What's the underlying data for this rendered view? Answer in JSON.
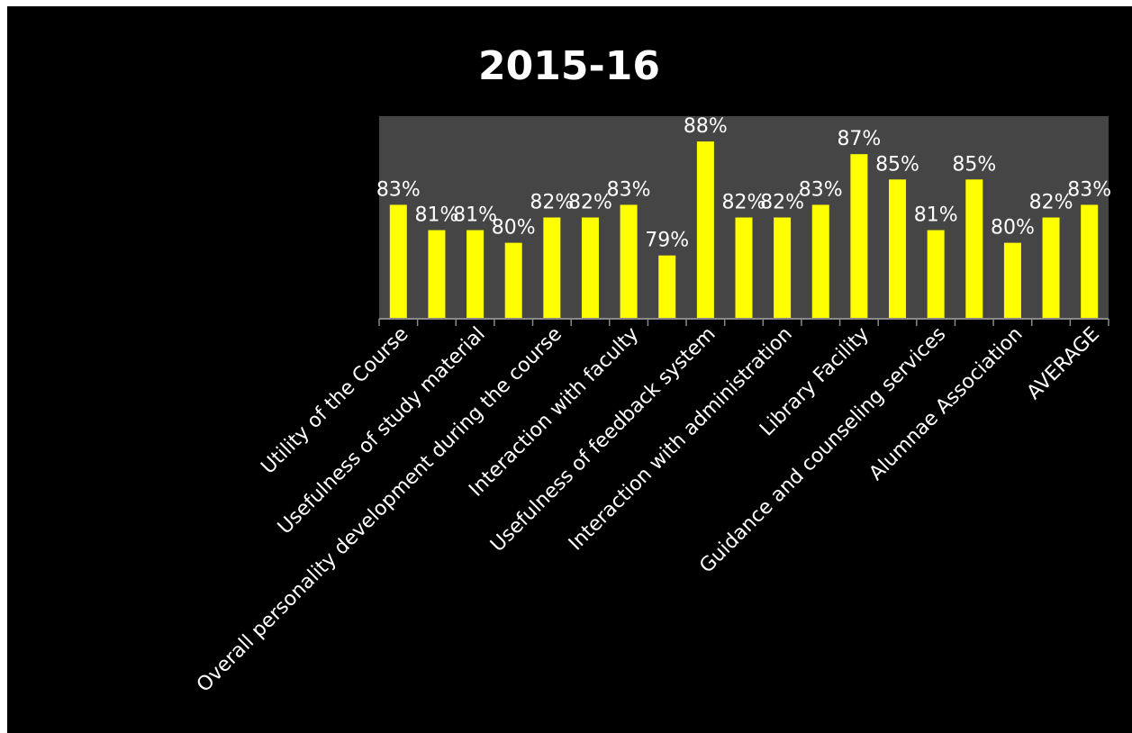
{
  "chart_data": {
    "type": "bar",
    "title": "2015-16",
    "xlabel": "",
    "ylabel": "",
    "categories": [
      "Utility of  the Course",
      "",
      "Usefulness of study material",
      "",
      "Overall personality development during the course",
      "",
      "Interaction with faculty",
      "",
      "Usefulness of feedback system",
      "",
      "Interaction with administration",
      "",
      "Library Facility",
      "",
      "Guidance and counseling services",
      "",
      "Alumnae  Association",
      "",
      "AVERAGE"
    ],
    "series": [
      {
        "values": [
          0.83,
          0.81,
          0.81,
          0.8,
          0.82,
          0.82,
          0.83,
          0.79,
          0.88,
          0.82,
          0.82,
          0.83,
          0.87,
          0.85,
          0.81,
          0.85,
          0.8,
          0.82,
          0.83
        ],
        "labels": [
          "83%",
          "81%",
          "81%",
          "80%",
          "82%",
          "82%",
          "83%",
          "79%",
          "88%",
          "82%",
          "82%",
          "83%",
          "87%",
          "85%",
          "81%",
          "85%",
          "80%",
          "82%",
          "83%"
        ]
      }
    ],
    "ylim": [
      0.74,
      0.9
    ],
    "grid": false,
    "legend": "none",
    "colors": {
      "background": "#000000",
      "plot_area": "#454545",
      "bar": "#ffff00",
      "text": "#ffffff",
      "axis": "#8a8a8a"
    }
  }
}
